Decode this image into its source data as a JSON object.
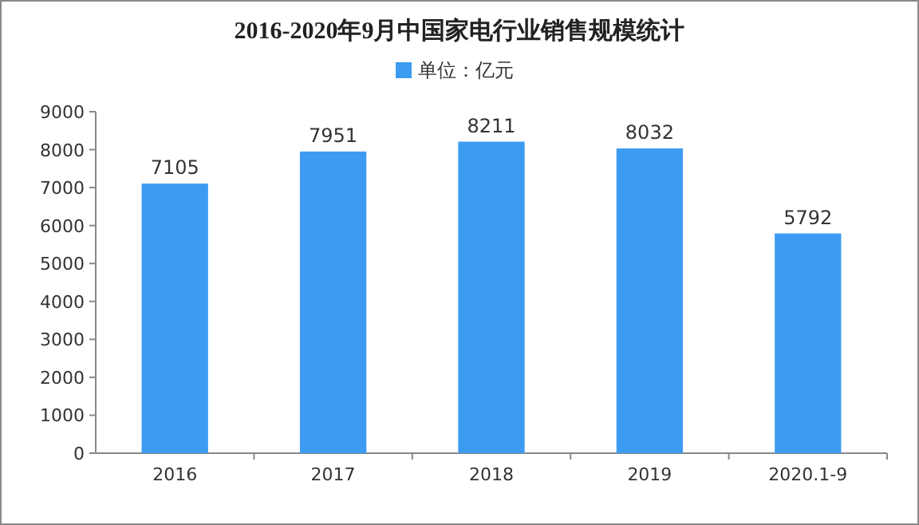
{
  "chart_data": {
    "type": "bar",
    "title": "2016-2020年9月中国家电行业销售规模统计",
    "categories": [
      "2016",
      "2017",
      "2018",
      "2019",
      "2020.1-9"
    ],
    "series": [
      {
        "name": "单位：亿元",
        "color": "#3d9cf2",
        "values": [
          7105,
          7951,
          8211,
          8032,
          5792
        ]
      }
    ],
    "ylim": [
      0,
      9000
    ],
    "yticks": [
      0,
      1000,
      2000,
      3000,
      4000,
      5000,
      6000,
      7000,
      8000,
      9000
    ],
    "data_labels": true,
    "legend": "top",
    "grid": false
  }
}
